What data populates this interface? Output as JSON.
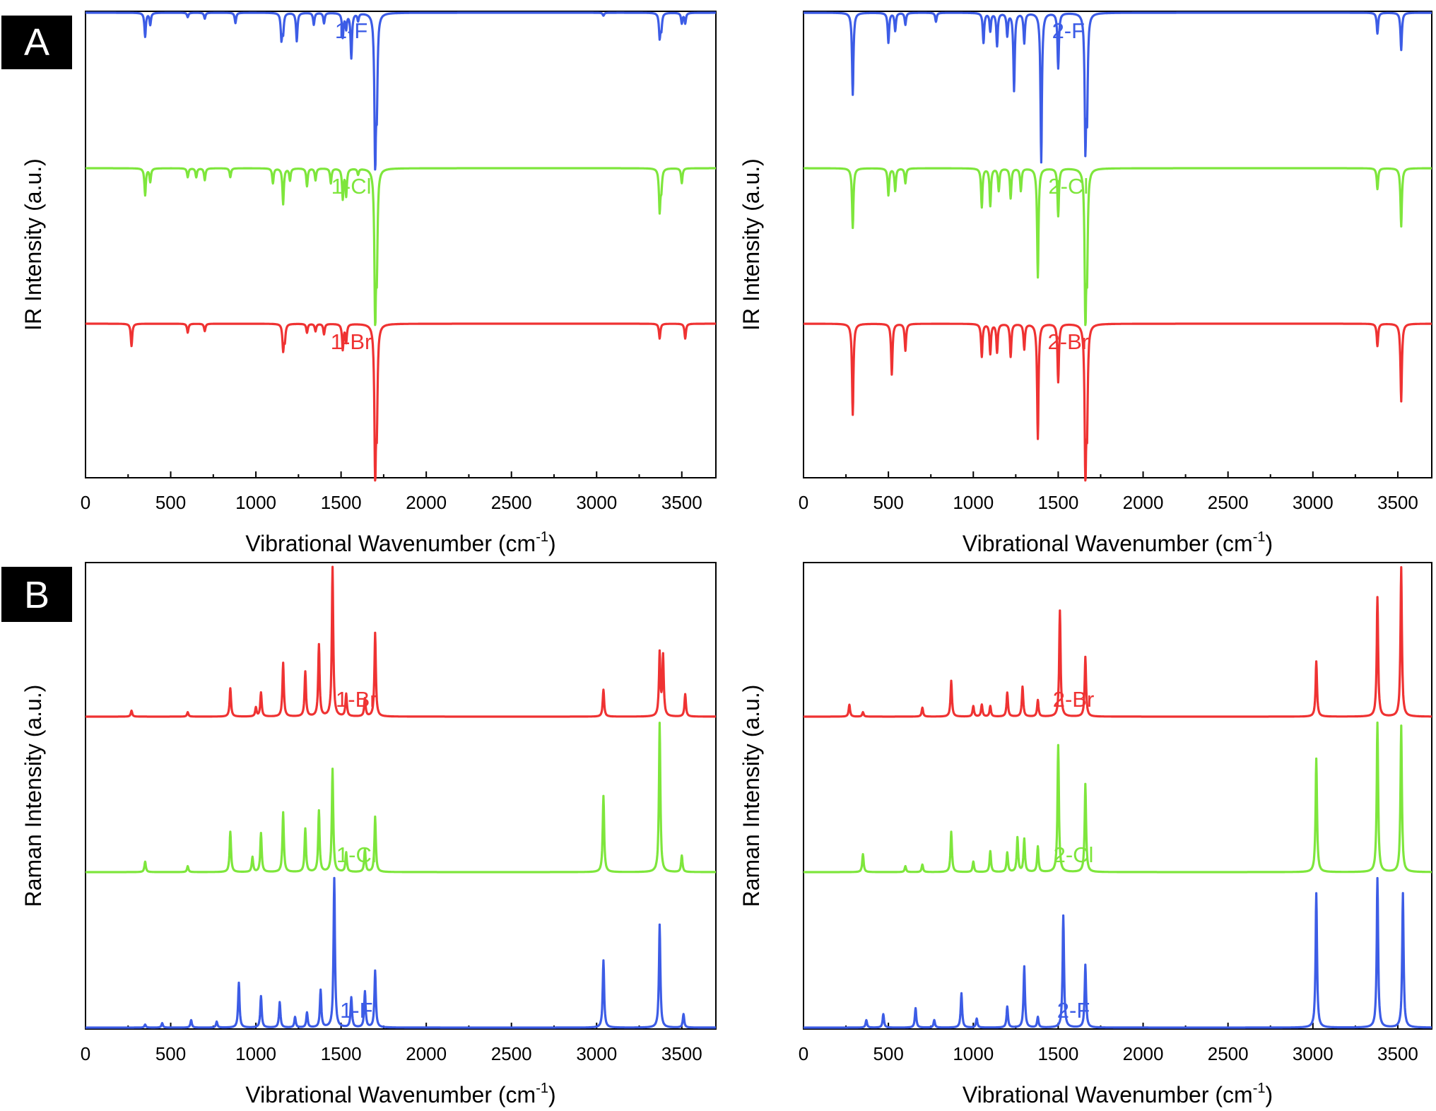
{
  "panels": [
    {
      "id": "A",
      "label": "A"
    },
    {
      "id": "B",
      "label": "B"
    }
  ],
  "colors": {
    "F": "#3c5ce6",
    "Cl": "#7ee63c",
    "Br": "#ef3232"
  },
  "chart_data": [
    {
      "type": "line",
      "panel": "A",
      "title": "",
      "xlabel": "Vibrational Wavenumber (cm",
      "xlabel_sup": "-1",
      "xlabel_end": ")",
      "ylabel": "IR Intensity (a.u.)",
      "xlim": [
        0,
        3700
      ],
      "xticks": [
        0,
        500,
        1000,
        1500,
        2000,
        2500,
        3000,
        3500
      ],
      "direction": "down",
      "yaxis_ticks": false,
      "series": [
        {
          "name": "1-F",
          "color": "#3c5ce6",
          "peaks": [
            [
              350,
              0.16
            ],
            [
              380,
              0.08
            ],
            [
              600,
              0.03
            ],
            [
              700,
              0.04
            ],
            [
              880,
              0.07
            ],
            [
              1150,
              0.17
            ],
            [
              1160,
              0.12
            ],
            [
              1240,
              0.19
            ],
            [
              1340,
              0.08
            ],
            [
              1400,
              0.07
            ],
            [
              1510,
              0.16
            ],
            [
              1530,
              0.1
            ],
            [
              1560,
              0.3
            ],
            [
              1600,
              0.05
            ],
            [
              1700,
              1.0
            ],
            [
              1710,
              0.55
            ],
            [
              3040,
              0.02
            ],
            [
              3370,
              0.16
            ],
            [
              3380,
              0.1
            ],
            [
              3500,
              0.07
            ],
            [
              3520,
              0.07
            ]
          ]
        },
        {
          "name": "1-Cl",
          "color": "#7ee63c",
          "peaks": [
            [
              350,
              0.18
            ],
            [
              380,
              0.09
            ],
            [
              600,
              0.06
            ],
            [
              650,
              0.06
            ],
            [
              700,
              0.08
            ],
            [
              850,
              0.06
            ],
            [
              1100,
              0.1
            ],
            [
              1160,
              0.24
            ],
            [
              1200,
              0.08
            ],
            [
              1300,
              0.12
            ],
            [
              1350,
              0.08
            ],
            [
              1440,
              0.1
            ],
            [
              1510,
              0.2
            ],
            [
              1530,
              0.18
            ],
            [
              1600,
              0.04
            ],
            [
              1700,
              1.0
            ],
            [
              1710,
              0.6
            ],
            [
              3370,
              0.28
            ],
            [
              3380,
              0.12
            ],
            [
              3500,
              0.1
            ]
          ]
        },
        {
          "name": "1-Br",
          "color": "#ef3232",
          "peaks": [
            [
              270,
              0.15
            ],
            [
              600,
              0.06
            ],
            [
              700,
              0.05
            ],
            [
              1160,
              0.17
            ],
            [
              1170,
              0.1
            ],
            [
              1300,
              0.06
            ],
            [
              1350,
              0.05
            ],
            [
              1400,
              0.07
            ],
            [
              1510,
              0.17
            ],
            [
              1530,
              0.12
            ],
            [
              1700,
              1.0
            ],
            [
              1710,
              0.6
            ],
            [
              3370,
              0.1
            ],
            [
              3520,
              0.1
            ]
          ]
        }
      ],
      "series_label_x": [
        1560,
        1560,
        1560
      ]
    },
    {
      "type": "line",
      "panel": "A",
      "title": "",
      "xlabel": "Vibrational Wavenumber (cm",
      "xlabel_sup": "-1",
      "xlabel_end": ")",
      "ylabel": "IR Intensity (a.u.)",
      "xlim": [
        0,
        3700
      ],
      "xticks": [
        0,
        500,
        1000,
        1500,
        2000,
        2500,
        3000,
        3500
      ],
      "direction": "down",
      "yaxis_ticks": false,
      "series": [
        {
          "name": "2-F",
          "color": "#3c5ce6",
          "peaks": [
            [
              290,
              0.55
            ],
            [
              500,
              0.2
            ],
            [
              540,
              0.12
            ],
            [
              600,
              0.08
            ],
            [
              780,
              0.06
            ],
            [
              1060,
              0.2
            ],
            [
              1100,
              0.12
            ],
            [
              1140,
              0.22
            ],
            [
              1200,
              0.15
            ],
            [
              1240,
              0.52
            ],
            [
              1300,
              0.2
            ],
            [
              1400,
              1.0
            ],
            [
              1500,
              0.37
            ],
            [
              1660,
              0.84
            ],
            [
              1670,
              0.6
            ],
            [
              3380,
              0.14
            ],
            [
              3520,
              0.25
            ]
          ]
        },
        {
          "name": "2-Cl",
          "color": "#7ee63c",
          "peaks": [
            [
              290,
              0.4
            ],
            [
              500,
              0.18
            ],
            [
              540,
              0.15
            ],
            [
              600,
              0.1
            ],
            [
              1050,
              0.26
            ],
            [
              1100,
              0.25
            ],
            [
              1150,
              0.15
            ],
            [
              1220,
              0.2
            ],
            [
              1280,
              0.15
            ],
            [
              1380,
              0.73
            ],
            [
              1500,
              0.32
            ],
            [
              1660,
              1.0
            ],
            [
              1670,
              0.6
            ],
            [
              3380,
              0.14
            ],
            [
              3520,
              0.39
            ]
          ]
        },
        {
          "name": "2-Br",
          "color": "#ef3232",
          "peaks": [
            [
              290,
              0.61
            ],
            [
              520,
              0.34
            ],
            [
              600,
              0.18
            ],
            [
              1050,
              0.22
            ],
            [
              1100,
              0.2
            ],
            [
              1140,
              0.19
            ],
            [
              1220,
              0.22
            ],
            [
              1300,
              0.17
            ],
            [
              1380,
              0.77
            ],
            [
              1500,
              0.39
            ],
            [
              1660,
              1.0
            ],
            [
              1670,
              0.6
            ],
            [
              3380,
              0.15
            ],
            [
              3520,
              0.52
            ]
          ]
        }
      ],
      "series_label_x": [
        1560,
        1560,
        1560
      ]
    },
    {
      "type": "line",
      "panel": "B",
      "title": "",
      "xlabel": "Vibrational Wavenumber (cm",
      "xlabel_sup": "-1",
      "xlabel_end": ")",
      "ylabel": "Raman Intensity (a.u.)",
      "xlim": [
        0,
        3700
      ],
      "xticks": [
        0,
        500,
        1000,
        1500,
        2000,
        2500,
        3000,
        3500
      ],
      "direction": "up",
      "yaxis_ticks": false,
      "series": [
        {
          "name": "1-Br",
          "color": "#ef3232",
          "peaks": [
            [
              270,
              0.04
            ],
            [
              600,
              0.03
            ],
            [
              850,
              0.19
            ],
            [
              1000,
              0.06
            ],
            [
              1030,
              0.16
            ],
            [
              1160,
              0.36
            ],
            [
              1290,
              0.3
            ],
            [
              1370,
              0.48
            ],
            [
              1450,
              1.0
            ],
            [
              1530,
              0.15
            ],
            [
              1640,
              0.12
            ],
            [
              1700,
              0.56
            ],
            [
              3040,
              0.18
            ],
            [
              3370,
              0.42
            ],
            [
              3390,
              0.4
            ],
            [
              3520,
              0.15
            ]
          ]
        },
        {
          "name": "1-Cl",
          "color": "#7ee63c",
          "peaks": [
            [
              350,
              0.07
            ],
            [
              600,
              0.04
            ],
            [
              850,
              0.27
            ],
            [
              980,
              0.1
            ],
            [
              1030,
              0.26
            ],
            [
              1160,
              0.4
            ],
            [
              1290,
              0.29
            ],
            [
              1370,
              0.41
            ],
            [
              1450,
              0.69
            ],
            [
              1530,
              0.13
            ],
            [
              1640,
              0.15
            ],
            [
              1700,
              0.37
            ],
            [
              3040,
              0.51
            ],
            [
              3370,
              1.0
            ],
            [
              3500,
              0.11
            ]
          ]
        },
        {
          "name": "1-F",
          "color": "#3c5ce6",
          "peaks": [
            [
              350,
              0.02
            ],
            [
              450,
              0.03
            ],
            [
              620,
              0.05
            ],
            [
              770,
              0.04
            ],
            [
              900,
              0.3
            ],
            [
              1030,
              0.21
            ],
            [
              1140,
              0.17
            ],
            [
              1230,
              0.07
            ],
            [
              1300,
              0.1
            ],
            [
              1380,
              0.25
            ],
            [
              1460,
              1.0
            ],
            [
              1560,
              0.2
            ],
            [
              1640,
              0.24
            ],
            [
              1700,
              0.38
            ],
            [
              3040,
              0.45
            ],
            [
              3370,
              0.69
            ],
            [
              3510,
              0.09
            ]
          ]
        }
      ],
      "series_label_x": [
        1590,
        1590,
        1590
      ]
    },
    {
      "type": "line",
      "panel": "B",
      "title": "",
      "xlabel": "Vibrational Wavenumber (cm",
      "xlabel_sup": "-1",
      "xlabel_end": ")",
      "ylabel": "Raman Intensity (a.u.)",
      "xlim": [
        0,
        3700
      ],
      "xticks": [
        0,
        500,
        1000,
        1500,
        2000,
        2500,
        3000,
        3500
      ],
      "direction": "up",
      "yaxis_ticks": false,
      "series": [
        {
          "name": "2-Br",
          "color": "#ef3232",
          "peaks": [
            [
              270,
              0.08
            ],
            [
              350,
              0.03
            ],
            [
              700,
              0.06
            ],
            [
              870,
              0.24
            ],
            [
              1000,
              0.07
            ],
            [
              1050,
              0.08
            ],
            [
              1100,
              0.07
            ],
            [
              1200,
              0.16
            ],
            [
              1290,
              0.2
            ],
            [
              1380,
              0.11
            ],
            [
              1510,
              0.71
            ],
            [
              1660,
              0.4
            ],
            [
              3020,
              0.37
            ],
            [
              3380,
              0.8
            ],
            [
              3520,
              1.0
            ]
          ]
        },
        {
          "name": "2-Cl",
          "color": "#7ee63c",
          "peaks": [
            [
              350,
              0.12
            ],
            [
              600,
              0.04
            ],
            [
              700,
              0.05
            ],
            [
              870,
              0.27
            ],
            [
              1000,
              0.07
            ],
            [
              1100,
              0.14
            ],
            [
              1200,
              0.13
            ],
            [
              1260,
              0.23
            ],
            [
              1300,
              0.22
            ],
            [
              1380,
              0.17
            ],
            [
              1500,
              0.85
            ],
            [
              1660,
              0.59
            ],
            [
              3020,
              0.76
            ],
            [
              3380,
              1.0
            ],
            [
              3520,
              0.98
            ]
          ]
        },
        {
          "name": "2-F",
          "color": "#3c5ce6",
          "peaks": [
            [
              370,
              0.05
            ],
            [
              470,
              0.09
            ],
            [
              660,
              0.13
            ],
            [
              770,
              0.05
            ],
            [
              930,
              0.23
            ],
            [
              1020,
              0.06
            ],
            [
              1200,
              0.14
            ],
            [
              1300,
              0.41
            ],
            [
              1380,
              0.07
            ],
            [
              1530,
              0.75
            ],
            [
              1660,
              0.42
            ],
            [
              3020,
              0.9
            ],
            [
              3380,
              1.0
            ],
            [
              3530,
              0.9
            ]
          ]
        }
      ],
      "series_label_x": [
        1590,
        1590,
        1590
      ]
    }
  ]
}
